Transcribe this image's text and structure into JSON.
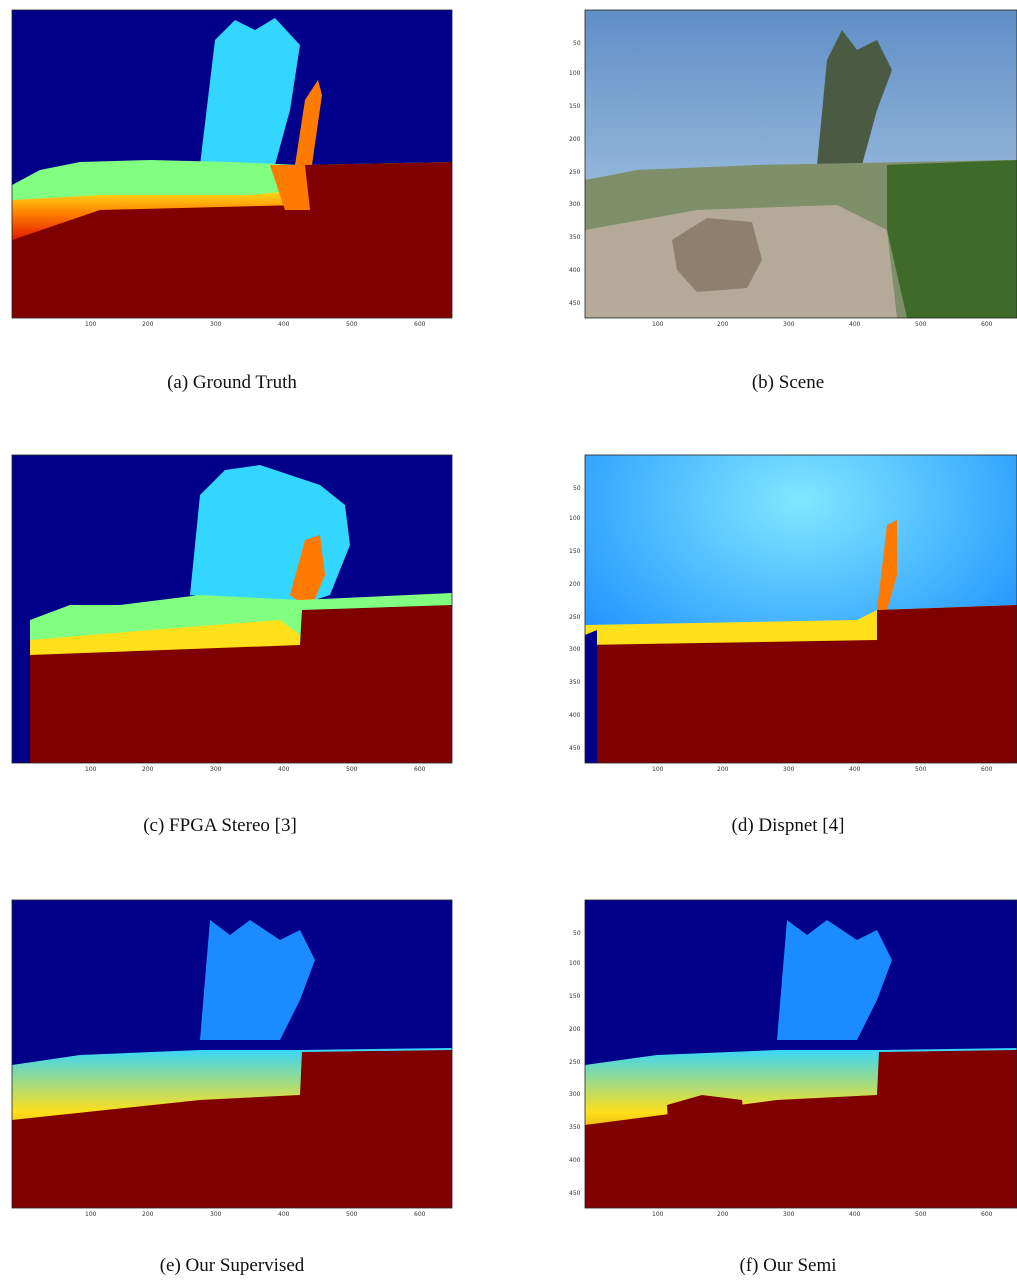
{
  "figure": {
    "panels": [
      {
        "id": "a",
        "caption": "(a) Ground Truth",
        "kind": "disparity-map",
        "colormap": "jet"
      },
      {
        "id": "b",
        "caption": "(b) Scene",
        "kind": "rgb-image"
      },
      {
        "id": "c",
        "caption": "(c) FPGA Stereo [3]",
        "kind": "disparity-map",
        "colormap": "jet"
      },
      {
        "id": "d",
        "caption": "(d) Dispnet [4]",
        "kind": "disparity-map",
        "colormap": "jet"
      },
      {
        "id": "e",
        "caption": "(e) Our Supervised",
        "kind": "disparity-map",
        "colormap": "jet"
      },
      {
        "id": "f",
        "caption": "(f) Our Semi",
        "kind": "disparity-map",
        "colormap": "jet"
      }
    ],
    "x_ticks": [
      "100",
      "200",
      "300",
      "400",
      "500",
      "600"
    ],
    "y_ticks": [
      "50",
      "100",
      "150",
      "200",
      "250",
      "300",
      "350",
      "400",
      "450"
    ],
    "colors": {
      "jet_far": "#00008b",
      "jet_blue": "#1a8cff",
      "jet_cyan": "#33d6ff",
      "jet_green": "#80ff80",
      "jet_yellow": "#ffe01a",
      "jet_orange": "#ff7a00",
      "jet_red": "#e01a00",
      "jet_near": "#800000",
      "sky": "#8fb6dd",
      "foliage": "#3f6b2a",
      "stone": "#b5aa98"
    }
  }
}
